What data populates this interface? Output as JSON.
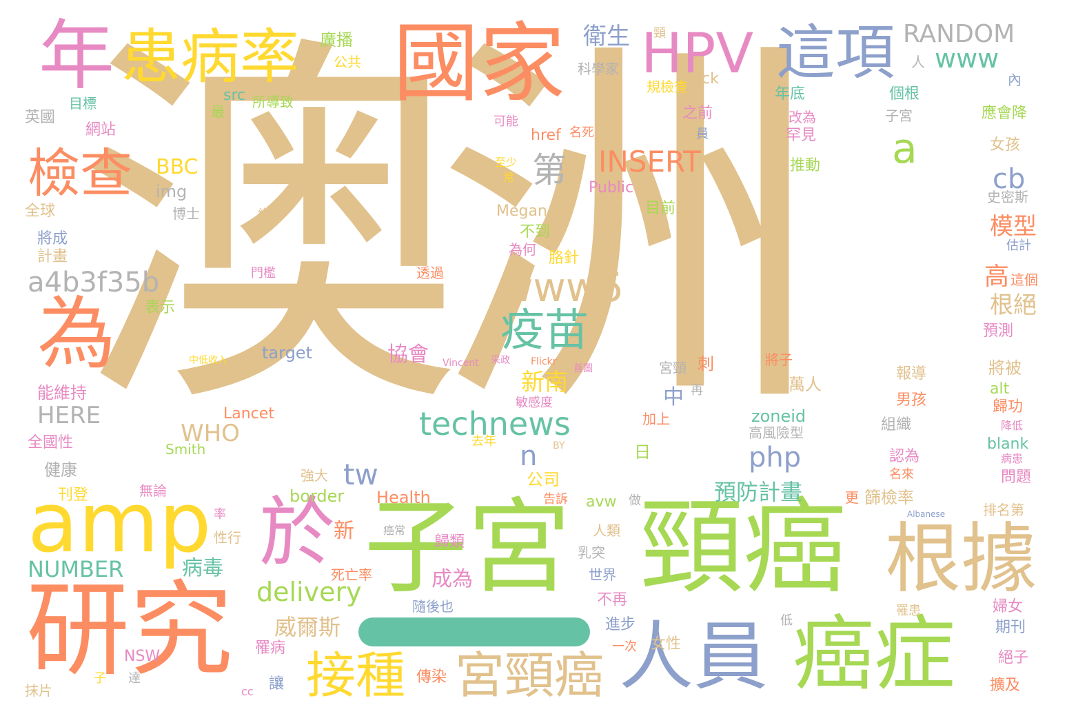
{
  "palette": {
    "tan": "#e1c18c",
    "orange": "#fc8d62",
    "green": "#a6d854",
    "blue": "#8da0cb",
    "pink": "#e78ac3",
    "yellow": "#ffd92f",
    "teal": "#66c2a5",
    "gray": "#b3b3b3"
  },
  "words": [
    {
      "text": "澳洲"
    },
    {
      "text": "子宮"
    },
    {
      "text": "頸癌"
    },
    {
      "text": "國家"
    },
    {
      "text": "研究"
    },
    {
      "text": "amp"
    },
    {
      "text": "人員"
    },
    {
      "text": "癌症"
    },
    {
      "text": "根據"
    },
    {
      "text": "於"
    },
    {
      "text": "為"
    },
    {
      "text": "年"
    },
    {
      "text": "患病率"
    },
    {
      "text": "HPV"
    },
    {
      "text": "這項"
    },
    {
      "text": "檢查"
    },
    {
      "text": "接種"
    },
    {
      "text": "宮頸癌"
    },
    {
      "text": "疫苗"
    },
    {
      "text": "www5"
    },
    {
      "text": "technews"
    },
    {
      "text": "a4b3f35b"
    },
    {
      "text": "第"
    },
    {
      "text": "INSERT"
    },
    {
      "text": "a"
    },
    {
      "text": "RANDOM"
    },
    {
      "text": "www"
    },
    {
      "text": "delivery"
    },
    {
      "text": "php"
    },
    {
      "text": "tw"
    },
    {
      "text": "NUMBER"
    },
    {
      "text": "HERE"
    },
    {
      "text": "WHO"
    },
    {
      "text": "BBC"
    },
    {
      "text": "cb"
    },
    {
      "text": "n"
    },
    {
      "text": "衛生"
    },
    {
      "text": "新南"
    },
    {
      "text": "威爾斯"
    },
    {
      "text": "預防計畫"
    },
    {
      "text": "模型"
    },
    {
      "text": "根絕"
    },
    {
      "text": "高"
    },
    {
      "text": "協會"
    },
    {
      "text": "中"
    },
    {
      "text": "病毒"
    },
    {
      "text": "成為"
    },
    {
      "text": "新"
    },
    {
      "text": "img"
    },
    {
      "text": "target"
    },
    {
      "text": "border"
    },
    {
      "text": "Health"
    },
    {
      "text": "Lancet"
    },
    {
      "text": "zoneid"
    },
    {
      "text": "Public"
    },
    {
      "text": "Megan"
    },
    {
      "text": "Smith"
    },
    {
      "text": "href"
    },
    {
      "text": "src"
    },
    {
      "text": "ck"
    },
    {
      "text": "alt"
    },
    {
      "text": "blank"
    },
    {
      "text": "avw"
    },
    {
      "text": "廣播"
    },
    {
      "text": "公共"
    },
    {
      "text": "頸"
    },
    {
      "text": "目標"
    },
    {
      "text": "英國"
    },
    {
      "text": "網站"
    },
    {
      "text": "最"
    },
    {
      "text": "所導致"
    },
    {
      "text": "科學家"
    },
    {
      "text": "規檢查"
    },
    {
      "text": "人"
    },
    {
      "text": "內"
    },
    {
      "text": "年底"
    },
    {
      "text": "個根"
    },
    {
      "text": "子宮"
    },
    {
      "text": "應會降"
    },
    {
      "text": "可能"
    },
    {
      "text": "名死"
    },
    {
      "text": "之前"
    },
    {
      "text": "員"
    },
    {
      "text": "改為"
    },
    {
      "text": "罕見"
    },
    {
      "text": "女孩"
    },
    {
      "text": "至少"
    },
    {
      "text": "常"
    },
    {
      "text": "推動"
    },
    {
      "text": "史密斯"
    },
    {
      "text": "全球"
    },
    {
      "text": "博士"
    },
    {
      "text": "約"
    },
    {
      "text": "目前"
    },
    {
      "text": "將成"
    },
    {
      "text": "計畫"
    },
    {
      "text": "不到"
    },
    {
      "text": "估計"
    },
    {
      "text": "為何"
    },
    {
      "text": "胳針"
    },
    {
      "text": "這個"
    },
    {
      "text": "門檻"
    },
    {
      "text": "透過"
    },
    {
      "text": "表示"
    },
    {
      "text": "預測"
    },
    {
      "text": "中低收入"
    },
    {
      "text": "Vincent"
    },
    {
      "text": "采政"
    },
    {
      "text": "Flickr"
    },
    {
      "text": "首圖"
    },
    {
      "text": "宮頸"
    },
    {
      "text": "刺"
    },
    {
      "text": "將子"
    },
    {
      "text": "將被"
    },
    {
      "text": "報導"
    },
    {
      "text": "萬人"
    },
    {
      "text": "能維持"
    },
    {
      "text": "敏感度"
    },
    {
      "text": "再"
    },
    {
      "text": "男孩"
    },
    {
      "text": "歸功"
    },
    {
      "text": "加上"
    },
    {
      "text": "組織"
    },
    {
      "text": "降低"
    },
    {
      "text": "全國性"
    },
    {
      "text": "去年"
    },
    {
      "text": "BY"
    },
    {
      "text": "高風險型"
    },
    {
      "text": "日"
    },
    {
      "text": "認為"
    },
    {
      "text": "病患"
    },
    {
      "text": "健康"
    },
    {
      "text": "強大"
    },
    {
      "text": "公司"
    },
    {
      "text": "名來"
    },
    {
      "text": "問題"
    },
    {
      "text": "刊登"
    },
    {
      "text": "無論"
    },
    {
      "text": "告訴"
    },
    {
      "text": "做"
    },
    {
      "text": "更"
    },
    {
      "text": "篩檢率"
    },
    {
      "text": "排名第"
    },
    {
      "text": "率"
    },
    {
      "text": "Albanese"
    },
    {
      "text": "癌常"
    },
    {
      "text": "人類"
    },
    {
      "text": "性行"
    },
    {
      "text": "歸類"
    },
    {
      "text": "乳突"
    },
    {
      "text": "死亡率"
    },
    {
      "text": "世界"
    },
    {
      "text": "隨後也"
    },
    {
      "text": "不再"
    },
    {
      "text": "罹患"
    },
    {
      "text": "婦女"
    },
    {
      "text": "低"
    },
    {
      "text": "進步"
    },
    {
      "text": "期刊"
    },
    {
      "text": "罹病"
    },
    {
      "text": "一次"
    },
    {
      "text": "女性"
    },
    {
      "text": "NSW"
    },
    {
      "text": "絕子"
    },
    {
      "text": "讓"
    },
    {
      "text": "傳染"
    },
    {
      "text": "擴及"
    },
    {
      "text": "抹片"
    },
    {
      "text": "子"
    },
    {
      "text": "達"
    },
    {
      "text": "cc"
    }
  ]
}
